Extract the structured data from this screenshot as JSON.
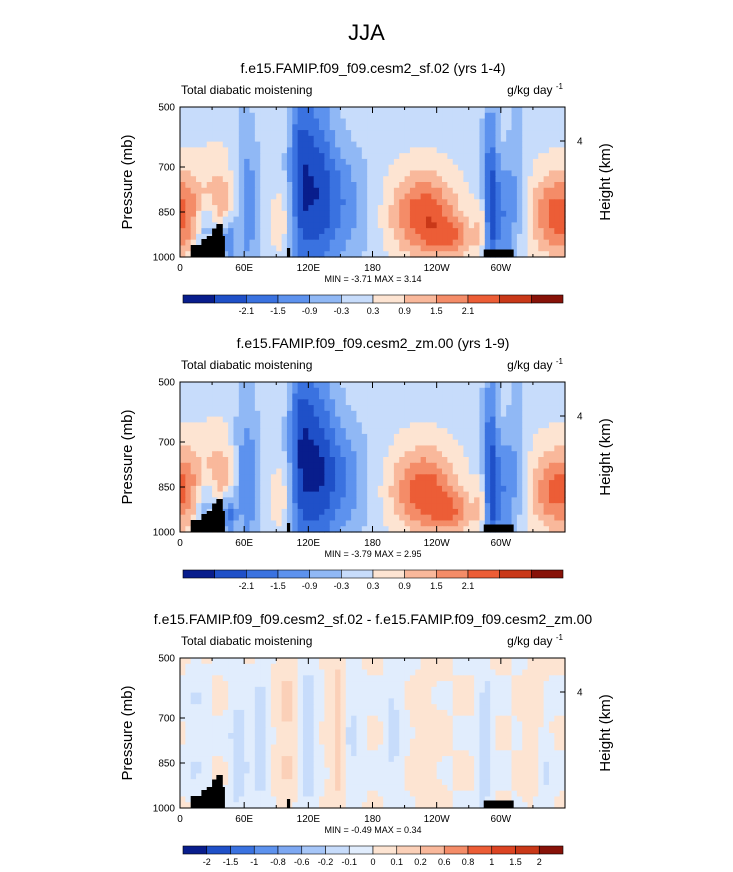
{
  "figure": {
    "title": "JJA"
  },
  "chart_data": [
    {
      "type": "heatmap",
      "title": "f.e15.FAMIP.f09_f09.cesm2_sf.02 (yrs 1-4)",
      "left_string": "Total diabatic moistening",
      "units_base": "g/kg day",
      "units_exp": "-1",
      "xlabel": "",
      "ylabel": "Pressure (mb)",
      "y2label": "Height (km)",
      "x_ticks": [
        "0",
        "60E",
        "120E",
        "180",
        "120W",
        "60W"
      ],
      "x_tick_lons": [
        0,
        60,
        120,
        180,
        240,
        300
      ],
      "xlim": [
        0,
        360
      ],
      "y_ticks": [
        "500",
        "700",
        "850",
        "1000"
      ],
      "y_tick_values": [
        500,
        700,
        850,
        1000
      ],
      "ylim": [
        500,
        1000
      ],
      "y2_ticks": [
        "4"
      ],
      "y2_tick_values": [
        4
      ],
      "stats": "MIN =  -3.71  MAX =  3.14",
      "colorbar_labels": [
        "-2.1",
        "-1.5",
        "-0.9",
        "-0.3",
        "0.3",
        "0.9",
        "1.5",
        "2.1"
      ],
      "features": [
        {
          "lon": 38,
          "p": 845,
          "wlon": 12,
          "wp": 120,
          "amp": 1.5
        },
        {
          "lon": 25,
          "p": 900,
          "wlon": 8,
          "wp": 60,
          "amp": -1.6
        },
        {
          "lon": 45,
          "p": 940,
          "wlon": 5,
          "wp": 50,
          "amp": -2.2
        },
        {
          "lon": 62,
          "p": 820,
          "wlon": 9,
          "wp": 200,
          "amp": -1.4
        },
        {
          "lon": 10,
          "p": 850,
          "wlon": 10,
          "wp": 100,
          "amp": 0.9
        },
        {
          "lon": 112,
          "p": 720,
          "wlon": 8,
          "wp": 280,
          "amp": -1.7
        },
        {
          "lon": 128,
          "p": 760,
          "wlon": 12,
          "wp": 250,
          "amp": -1.9
        },
        {
          "lon": 150,
          "p": 820,
          "wlon": 18,
          "wp": 150,
          "amp": -1.3
        },
        {
          "lon": 95,
          "p": 880,
          "wlon": 8,
          "wp": 80,
          "amp": 0.8
        },
        {
          "lon": 228,
          "p": 860,
          "wlon": 22,
          "wp": 100,
          "amp": 2.6
        },
        {
          "lon": 255,
          "p": 940,
          "wlon": 15,
          "wp": 50,
          "amp": 1.4
        },
        {
          "lon": 290,
          "p": 820,
          "wlon": 5,
          "wp": 250,
          "amp": -2.2
        },
        {
          "lon": 303,
          "p": 860,
          "wlon": 8,
          "wp": 140,
          "amp": -1.4
        },
        {
          "lon": 282,
          "p": 900,
          "wlon": 4,
          "wp": 60,
          "amp": 1.2
        },
        {
          "lon": 350,
          "p": 860,
          "wlon": 16,
          "wp": 100,
          "amp": 2.3
        },
        {
          "lon": 315,
          "p": 700,
          "wlon": 6,
          "wp": 200,
          "amp": -0.6
        }
      ]
    },
    {
      "type": "heatmap",
      "title": "f.e15.FAMIP.f09_f09.cesm2_zm.00 (yrs 1-9)",
      "left_string": "Total diabatic moistening",
      "units_base": "g/kg day",
      "units_exp": "-1",
      "xlabel": "",
      "ylabel": "Pressure (mb)",
      "y2label": "Height (km)",
      "x_ticks": [
        "0",
        "60E",
        "120E",
        "180",
        "120W",
        "60W"
      ],
      "x_tick_lons": [
        0,
        60,
        120,
        180,
        240,
        300
      ],
      "xlim": [
        0,
        360
      ],
      "y_ticks": [
        "500",
        "700",
        "850",
        "1000"
      ],
      "y_tick_values": [
        500,
        700,
        850,
        1000
      ],
      "ylim": [
        500,
        1000
      ],
      "y2_ticks": [
        "4"
      ],
      "y2_tick_values": [
        4
      ],
      "stats": "MIN =  -3.79  MAX =  2.95",
      "colorbar_labels": [
        "-2.1",
        "-1.5",
        "-0.9",
        "-0.3",
        "0.3",
        "0.9",
        "1.5",
        "2.1"
      ],
      "features": [
        {
          "lon": 38,
          "p": 845,
          "wlon": 12,
          "wp": 120,
          "amp": 1.5
        },
        {
          "lon": 25,
          "p": 900,
          "wlon": 8,
          "wp": 60,
          "amp": -1.6
        },
        {
          "lon": 45,
          "p": 940,
          "wlon": 5,
          "wp": 50,
          "amp": -2.3
        },
        {
          "lon": 62,
          "p": 820,
          "wlon": 9,
          "wp": 200,
          "amp": -1.5
        },
        {
          "lon": 10,
          "p": 850,
          "wlon": 10,
          "wp": 100,
          "amp": 0.9
        },
        {
          "lon": 112,
          "p": 720,
          "wlon": 8,
          "wp": 280,
          "amp": -1.8
        },
        {
          "lon": 128,
          "p": 760,
          "wlon": 12,
          "wp": 250,
          "amp": -2.0
        },
        {
          "lon": 150,
          "p": 820,
          "wlon": 18,
          "wp": 150,
          "amp": -1.4
        },
        {
          "lon": 95,
          "p": 880,
          "wlon": 8,
          "wp": 80,
          "amp": 0.8
        },
        {
          "lon": 228,
          "p": 860,
          "wlon": 22,
          "wp": 100,
          "amp": 2.5
        },
        {
          "lon": 255,
          "p": 940,
          "wlon": 15,
          "wp": 50,
          "amp": 1.4
        },
        {
          "lon": 290,
          "p": 820,
          "wlon": 5,
          "wp": 250,
          "amp": -2.3
        },
        {
          "lon": 303,
          "p": 860,
          "wlon": 8,
          "wp": 140,
          "amp": -1.4
        },
        {
          "lon": 282,
          "p": 900,
          "wlon": 4,
          "wp": 60,
          "amp": 1.2
        },
        {
          "lon": 350,
          "p": 860,
          "wlon": 16,
          "wp": 100,
          "amp": 2.2
        },
        {
          "lon": 315,
          "p": 700,
          "wlon": 6,
          "wp": 200,
          "amp": -0.6
        }
      ]
    },
    {
      "type": "heatmap",
      "title": "f.e15.FAMIP.f09_f09.cesm2_sf.02 - f.e15.FAMIP.f09_f09.cesm2_zm.00",
      "left_string": "Total diabatic moistening",
      "units_base": "g/kg day",
      "units_exp": "-1",
      "xlabel": "",
      "ylabel": "Pressure (mb)",
      "y2label": "Height (km)",
      "x_ticks": [
        "0",
        "60E",
        "120E",
        "180",
        "120W",
        "60W"
      ],
      "x_tick_lons": [
        0,
        60,
        120,
        180,
        240,
        300
      ],
      "xlim": [
        0,
        360
      ],
      "y_ticks": [
        "500",
        "700",
        "850",
        "1000"
      ],
      "y_tick_values": [
        500,
        700,
        850,
        1000
      ],
      "ylim": [
        500,
        1000
      ],
      "y2_ticks": [
        "4"
      ],
      "y2_tick_values": [
        4
      ],
      "stats": "MIN =  -0.49  MAX =  0.34",
      "colorbar_labels": [
        "-2",
        "-1.5",
        "-1",
        "-0.8",
        "-0.6",
        "-0.2",
        "-0.1",
        "0",
        "0.1",
        "0.2",
        "0.6",
        "0.8",
        "1",
        "1.5",
        "2"
      ],
      "features": [
        {
          "lon": 55,
          "p": 820,
          "wlon": 6,
          "wp": 150,
          "amp": -0.18
        },
        {
          "lon": 75,
          "p": 780,
          "wlon": 5,
          "wp": 200,
          "amp": -0.15
        },
        {
          "lon": 100,
          "p": 700,
          "wlon": 6,
          "wp": 250,
          "amp": 0.12
        },
        {
          "lon": 120,
          "p": 760,
          "wlon": 6,
          "wp": 250,
          "amp": -0.16
        },
        {
          "lon": 148,
          "p": 720,
          "wlon": 5,
          "wp": 280,
          "amp": 0.15
        },
        {
          "lon": 160,
          "p": 800,
          "wlon": 6,
          "wp": 200,
          "amp": -0.12
        },
        {
          "lon": 200,
          "p": 740,
          "wlon": 6,
          "wp": 220,
          "amp": -0.12
        },
        {
          "lon": 230,
          "p": 820,
          "wlon": 8,
          "wp": 150,
          "amp": 0.08
        },
        {
          "lon": 285,
          "p": 800,
          "wlon": 4,
          "wp": 220,
          "amp": -0.18
        },
        {
          "lon": 330,
          "p": 760,
          "wlon": 6,
          "wp": 220,
          "amp": 0.08
        },
        {
          "lon": 15,
          "p": 760,
          "wlon": 5,
          "wp": 220,
          "amp": -0.1
        },
        {
          "lon": 340,
          "p": 880,
          "wlon": 6,
          "wp": 100,
          "amp": -0.12
        }
      ]
    }
  ],
  "colors": {
    "palette11": [
      "#081d8c",
      "#1f50c8",
      "#3a72e0",
      "#5d92ee",
      "#90b8f5",
      "#c7dcfb",
      "#fde4d2",
      "#f9b89b",
      "#f48c68",
      "#ec5d36",
      "#c93818",
      "#871208"
    ],
    "palette15": [
      "#081d8c",
      "#1f50c8",
      "#3a72e0",
      "#5d92ee",
      "#7da8f2",
      "#a6c6f8",
      "#c7dcfb",
      "#e1edfd",
      "#fde4d2",
      "#fbd0b8",
      "#f9b89b",
      "#f48c68",
      "#ec5d36",
      "#dc4423",
      "#c93818",
      "#871208"
    ],
    "topography": "#000000"
  }
}
